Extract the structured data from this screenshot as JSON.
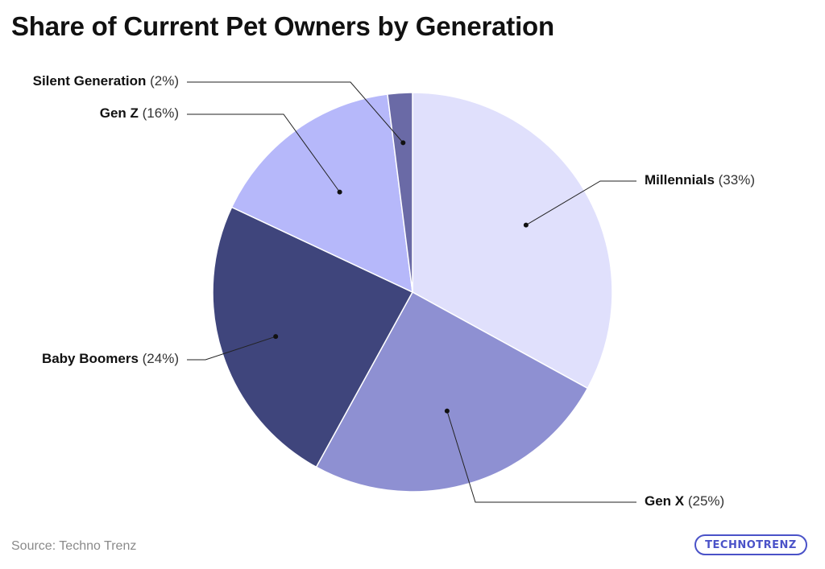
{
  "page": {
    "title": "Share of Current Pet Owners by Generation",
    "source": "Source: Techno Trenz",
    "logo_text": "TECHNOTRENZ"
  },
  "chart_data": {
    "type": "pie",
    "title": "Share of Current Pet Owners by Generation",
    "slices": [
      {
        "label": "Millennials",
        "value": 33,
        "value_label": "(33%)",
        "color": "#e0e0fc"
      },
      {
        "label": "Gen X",
        "value": 25,
        "value_label": "(25%)",
        "color": "#8e90d2"
      },
      {
        "label": "Baby Boomers",
        "value": 24,
        "value_label": "(24%)",
        "color": "#3f457c"
      },
      {
        "label": "Gen Z",
        "value": 16,
        "value_label": "(16%)",
        "color": "#b6b8fa"
      },
      {
        "label": "Silent Generation",
        "value": 2,
        "value_label": "(2%)",
        "color": "#6a6aa6"
      }
    ],
    "start_angle": "12 o'clock",
    "direction": "clockwise",
    "legend": "none"
  }
}
